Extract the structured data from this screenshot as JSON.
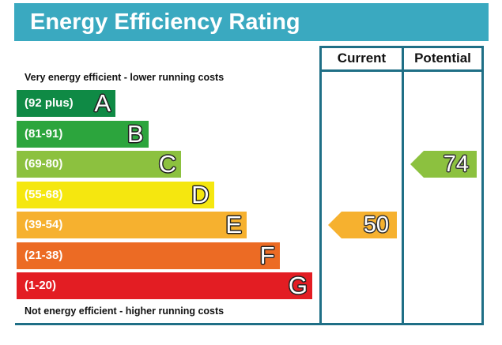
{
  "header": {
    "title": "Energy Efficiency Rating"
  },
  "columns": {
    "current": "Current",
    "potential": "Potential"
  },
  "edges": {
    "top": "Very energy efficient - lower running costs",
    "bottom": "Not energy efficient - higher running costs"
  },
  "chart_data": {
    "type": "bar",
    "title": "Energy Efficiency Rating",
    "bands": [
      {
        "letter": "A",
        "range": "(92 plus)",
        "min": 92,
        "max": 100,
        "color": "#0f8a45"
      },
      {
        "letter": "B",
        "range": "(81-91)",
        "min": 81,
        "max": 91,
        "color": "#2ca53d"
      },
      {
        "letter": "C",
        "range": "(69-80)",
        "min": 69,
        "max": 80,
        "color": "#8cc13f"
      },
      {
        "letter": "D",
        "range": "(55-68)",
        "min": 55,
        "max": 68,
        "color": "#f5e70f"
      },
      {
        "letter": "E",
        "range": "(39-54)",
        "min": 39,
        "max": 54,
        "color": "#f6b12f"
      },
      {
        "letter": "F",
        "range": "(21-38)",
        "min": 21,
        "max": 38,
        "color": "#ec6b24"
      },
      {
        "letter": "G",
        "range": "(1-20)",
        "min": 1,
        "max": 20,
        "color": "#e31d23"
      }
    ],
    "current": {
      "value": 50,
      "band": "E",
      "color": "#f6b12f"
    },
    "potential": {
      "value": 74,
      "band": "C",
      "color": "#8cc13f"
    }
  }
}
